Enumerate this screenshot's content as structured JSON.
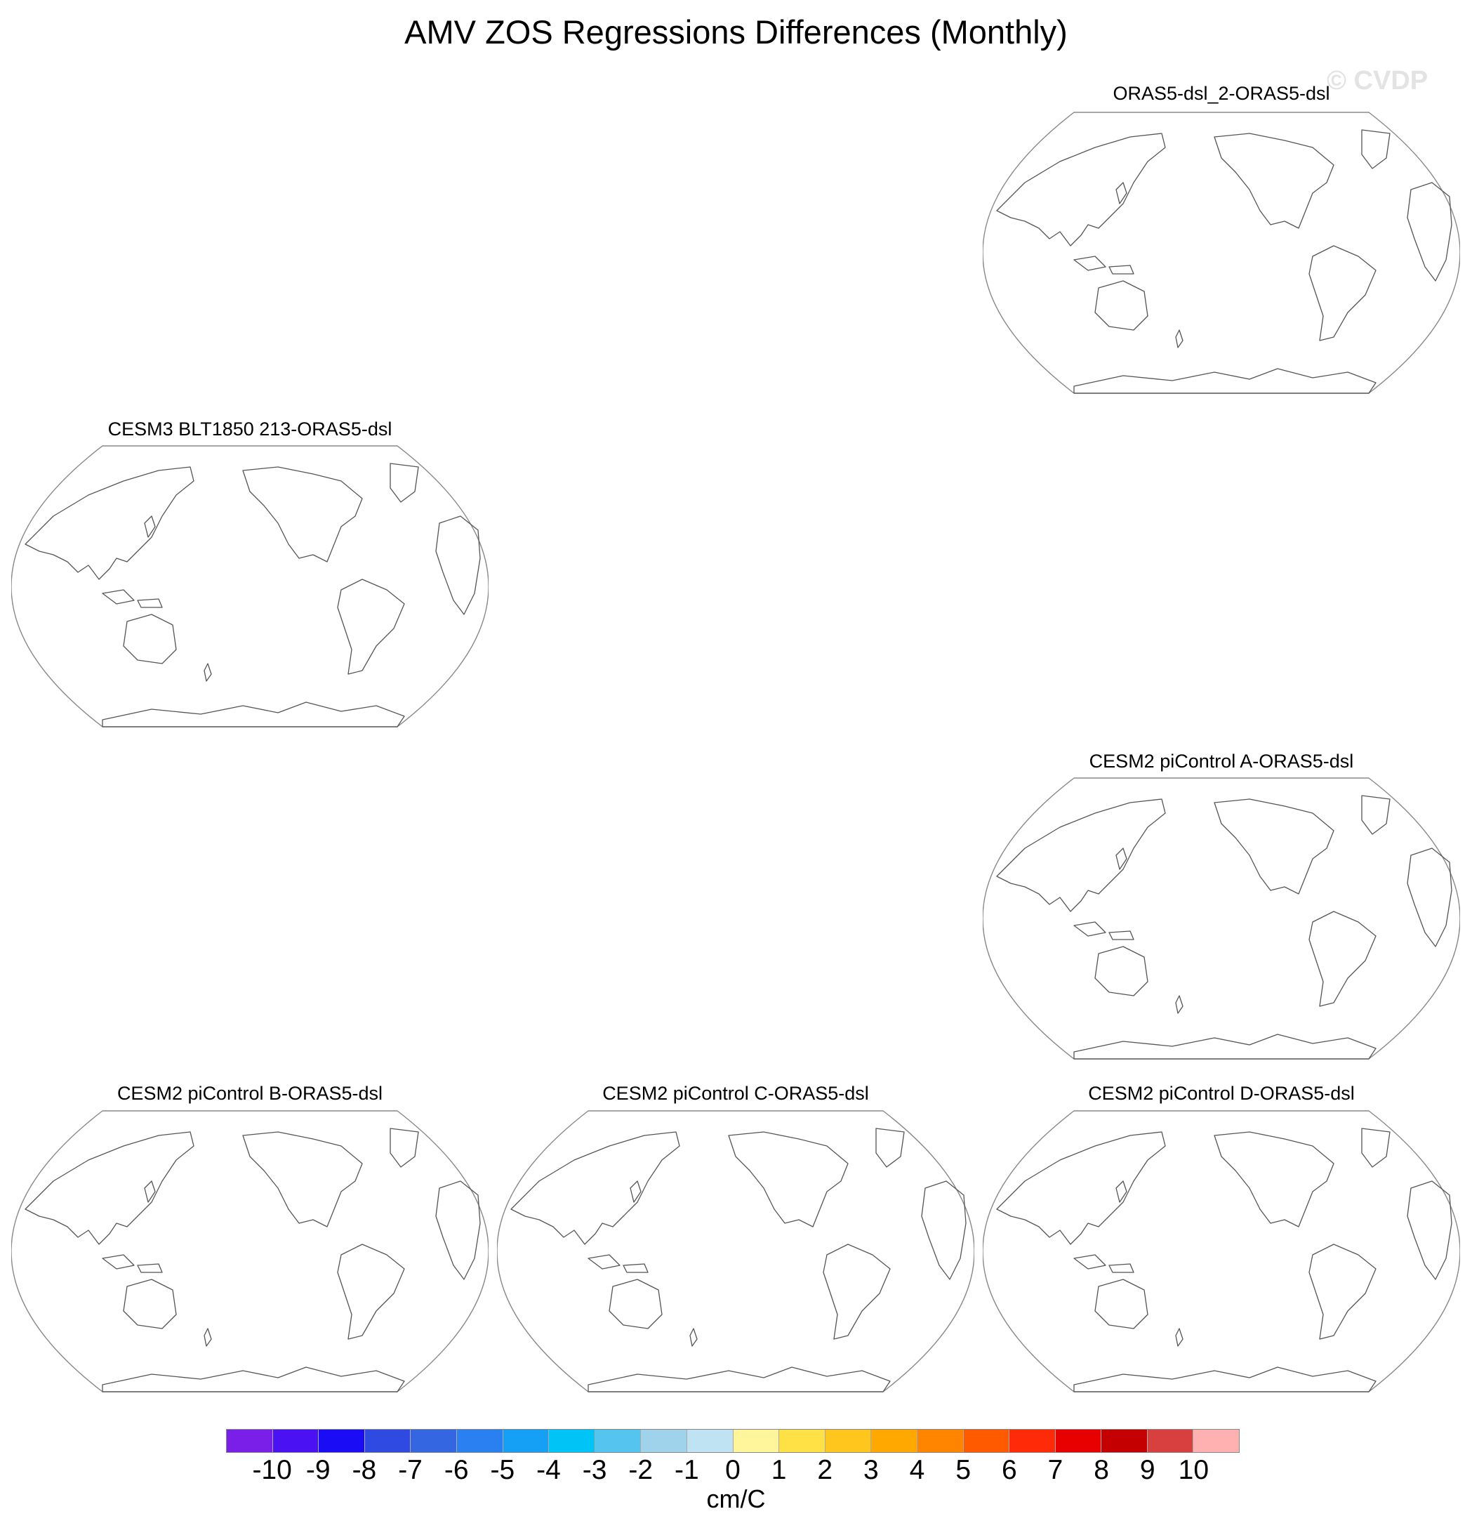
{
  "title": "AMV ZOS Regressions Differences (Monthly)",
  "watermark": "© CVDP",
  "panels": [
    {
      "title": "ORAS5-dsl_2-ORAS5-dsl"
    },
    {
      "title": "CESM3 BLT1850 213-ORAS5-dsl"
    },
    {
      "title": "CESM2 piControl A-ORAS5-dsl"
    },
    {
      "title": "CESM2 piControl B-ORAS5-dsl"
    },
    {
      "title": "CESM2 piControl C-ORAS5-dsl"
    },
    {
      "title": "CESM2 piControl D-ORAS5-dsl"
    }
  ],
  "colorbar": {
    "colors": [
      "#7a1fe8",
      "#4a12f2",
      "#1a0cf5",
      "#2f4ae0",
      "#3366e0",
      "#2a80f0",
      "#16a0f5",
      "#00c4f5",
      "#55c5ef",
      "#9fd2eb",
      "#bfe3f3",
      "#fff59a",
      "#ffe145",
      "#ffc61e",
      "#ffa800",
      "#ff8400",
      "#ff5a00",
      "#ff2a08",
      "#e80000",
      "#c40000",
      "#d84040",
      "#ffb0b0"
    ],
    "tick_labels": [
      "-10",
      "-9",
      "-8",
      "-7",
      "-6",
      "-5",
      "-4",
      "-3",
      "-2",
      "-1",
      "0",
      "1",
      "2",
      "3",
      "4",
      "5",
      "6",
      "7",
      "8",
      "9",
      "10"
    ],
    "unit": "cm/C"
  }
}
